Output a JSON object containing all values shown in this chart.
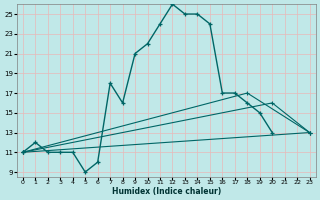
{
  "xlabel": "Humidex (Indice chaleur)",
  "bg_color": "#c0e8e8",
  "line_color": "#006666",
  "grid_color": "#d8f0f0",
  "xlim": [
    -0.5,
    23.5
  ],
  "ylim": [
    8.5,
    26.0
  ],
  "xticks": [
    0,
    1,
    2,
    3,
    4,
    5,
    6,
    7,
    8,
    9,
    10,
    11,
    12,
    13,
    14,
    15,
    16,
    17,
    18,
    19,
    20,
    21,
    22,
    23
  ],
  "yticks": [
    9,
    11,
    13,
    15,
    17,
    19,
    21,
    23,
    25
  ],
  "main_x": [
    0,
    1,
    2,
    3,
    4,
    5,
    6,
    7,
    8,
    9,
    10,
    11,
    12,
    13,
    14,
    15,
    16,
    17,
    18,
    19,
    20
  ],
  "main_y": [
    11,
    12,
    11,
    11,
    11,
    9,
    10,
    18,
    16,
    21,
    22,
    24,
    26,
    25,
    25,
    24,
    17,
    17,
    16,
    15,
    13
  ],
  "line1_x": [
    0,
    23
  ],
  "line1_y": [
    11,
    13
  ],
  "line2_x": [
    0,
    20,
    23
  ],
  "line2_y": [
    11,
    16,
    13
  ],
  "line3_x": [
    0,
    18,
    23
  ],
  "line3_y": [
    11,
    17,
    13
  ]
}
